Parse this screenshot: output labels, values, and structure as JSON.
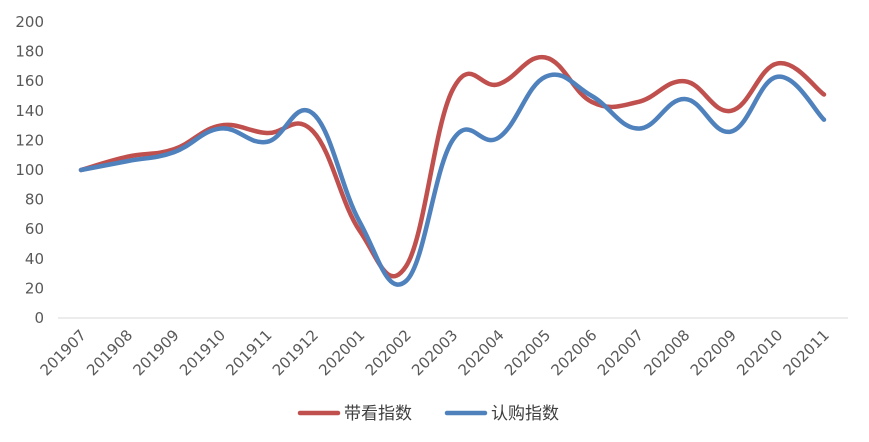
{
  "chart_data": {
    "type": "line",
    "title": "",
    "xlabel": "",
    "ylabel": "",
    "ylim": [
      0,
      200
    ],
    "y_ticks": [
      0,
      20,
      40,
      60,
      80,
      100,
      120,
      140,
      160,
      180,
      200
    ],
    "grid": false,
    "legend_position": "bottom",
    "categories": [
      "201907",
      "201908",
      "201909",
      "201910",
      "201911",
      "201912",
      "202001",
      "202002",
      "202003",
      "202004",
      "202005",
      "202006",
      "202007",
      "202008",
      "202009",
      "202010",
      "202011"
    ],
    "series": [
      {
        "name": "带看指数",
        "color": "#c0504d",
        "values": [
          100,
          109,
          114,
          130,
          125,
          126,
          59,
          35,
          154,
          158,
          176,
          146,
          146,
          160,
          140,
          172,
          151
        ]
      },
      {
        "name": "认购指数",
        "color": "#4f81bd",
        "values": [
          100,
          106,
          112,
          128,
          119,
          138,
          65,
          25,
          120,
          122,
          163,
          150,
          128,
          148,
          126,
          163,
          134
        ]
      }
    ]
  }
}
